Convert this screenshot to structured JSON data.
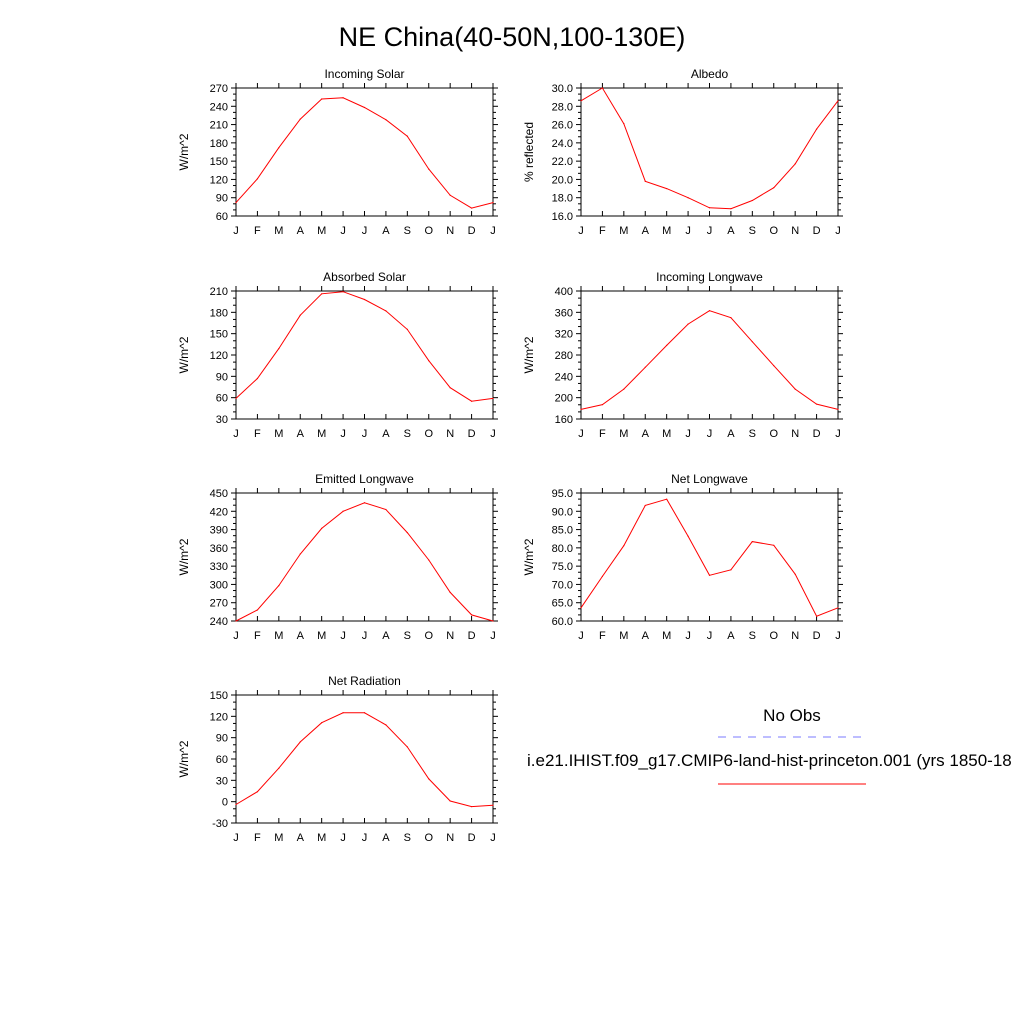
{
  "title": "NE China(40-50N,100-130E)",
  "months": [
    "J",
    "F",
    "M",
    "A",
    "M",
    "J",
    "J",
    "A",
    "S",
    "O",
    "N",
    "D",
    "J"
  ],
  "colors": {
    "model": "#ff0000",
    "obs": "#7b7bff"
  },
  "legend": {
    "obs_label": "No Obs",
    "model_label": "i.e21.IHIST.f09_g17.CMIP6-land-hist-princeton.001 (yrs 1850-18"
  },
  "chart_data": [
    {
      "type": "line",
      "title": "Incoming Solar",
      "ylabel": "W/m^2",
      "ylim": [
        60,
        270
      ],
      "yticks": [
        "60",
        "90",
        "120",
        "150",
        "180",
        "210",
        "240",
        "270"
      ],
      "series": [
        {
          "values": [
            82,
            121,
            172,
            219,
            252,
            254,
            238,
            218,
            191,
            137,
            94,
            73,
            82
          ]
        }
      ]
    },
    {
      "type": "line",
      "title": "Albedo",
      "ylabel": "% reflected",
      "ylim": [
        16.0,
        30.0
      ],
      "yticks": [
        "16.0",
        "18.0",
        "20.0",
        "22.0",
        "24.0",
        "26.0",
        "28.0",
        "30.0"
      ],
      "series": [
        {
          "values": [
            28.6,
            30.0,
            26.1,
            19.8,
            19.0,
            18.0,
            16.9,
            16.8,
            17.7,
            19.1,
            21.7,
            25.5,
            28.6
          ]
        }
      ]
    },
    {
      "type": "line",
      "title": "Absorbed Solar",
      "ylabel": "W/m^2",
      "ylim": [
        30,
        210
      ],
      "yticks": [
        "30",
        "60",
        "90",
        "120",
        "150",
        "180",
        "210"
      ],
      "series": [
        {
          "values": [
            59,
            87,
            129,
            176,
            206,
            209,
            198,
            182,
            156,
            112,
            74,
            55,
            59
          ]
        }
      ]
    },
    {
      "type": "line",
      "title": "Incoming Longwave",
      "ylabel": "W/m^2",
      "ylim": [
        160,
        400
      ],
      "yticks": [
        "160",
        "200",
        "240",
        "280",
        "320",
        "360",
        "400"
      ],
      "series": [
        {
          "values": [
            178,
            187,
            216,
            257,
            298,
            338,
            363,
            350,
            305,
            260,
            216,
            188,
            178
          ]
        }
      ]
    },
    {
      "type": "line",
      "title": "Emitted Longwave",
      "ylabel": "W/m^2",
      "ylim": [
        240,
        450
      ],
      "yticks": [
        "240",
        "270",
        "300",
        "330",
        "360",
        "390",
        "420",
        "450"
      ],
      "series": [
        {
          "values": [
            240,
            258,
            298,
            350,
            392,
            420,
            434,
            423,
            385,
            340,
            287,
            250,
            240
          ]
        }
      ]
    },
    {
      "type": "line",
      "title": "Net Longwave",
      "ylabel": "W/m^2",
      "ylim": [
        60.0,
        95.0
      ],
      "yticks": [
        "60.0",
        "65.0",
        "70.0",
        "75.0",
        "80.0",
        "85.0",
        "90.0",
        "95.0"
      ],
      "series": [
        {
          "values": [
            63.6,
            72.2,
            80.6,
            91.6,
            93.3,
            83.2,
            72.5,
            74.0,
            81.7,
            80.7,
            72.8,
            61.3,
            63.6
          ]
        }
      ]
    },
    {
      "type": "line",
      "title": "Net Radiation",
      "ylabel": "W/m^2",
      "ylim": [
        -30,
        150
      ],
      "yticks": [
        "-30",
        "0",
        "30",
        "60",
        "90",
        "120",
        "150"
      ],
      "series": [
        {
          "values": [
            -4,
            14,
            47,
            84,
            111,
            125,
            125,
            108,
            77,
            32,
            1,
            -7,
            -5
          ]
        }
      ]
    }
  ]
}
